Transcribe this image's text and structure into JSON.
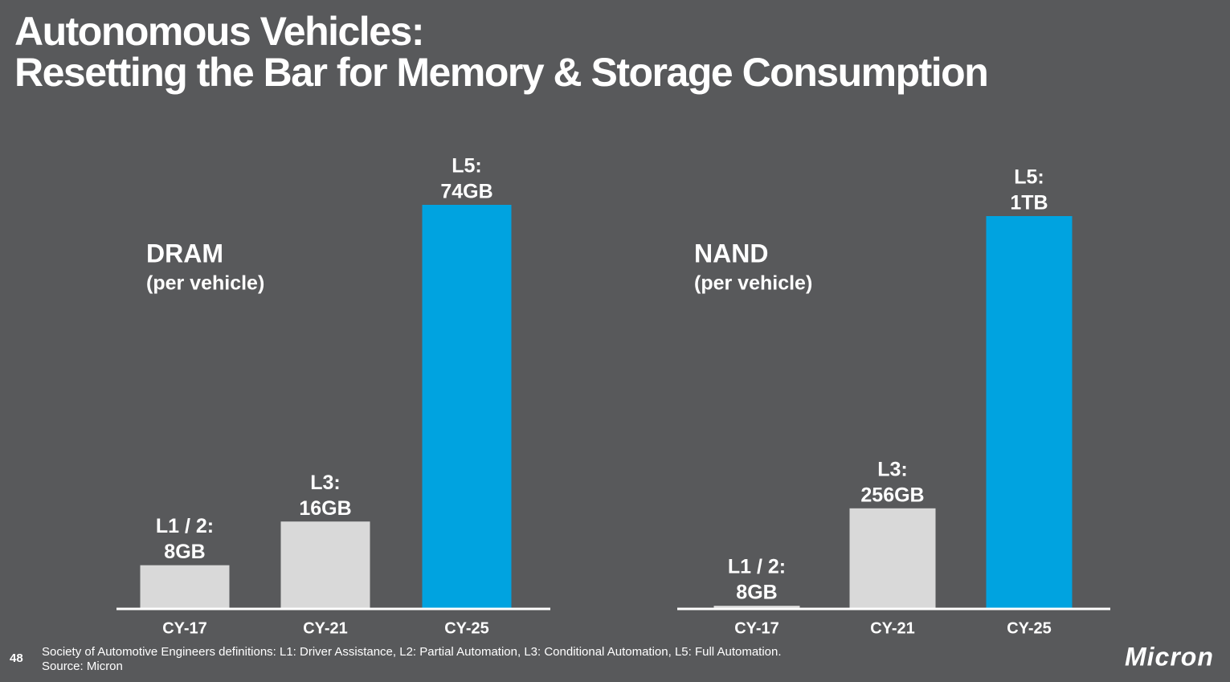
{
  "header": {
    "title": [
      "Autonomous Vehicles:",
      "Resetting the Bar for Memory & Storage Consumption"
    ]
  },
  "chart_data": [
    {
      "type": "bar",
      "title": "DRAM",
      "subtitle": "(per vehicle)",
      "categories": [
        "CY-17",
        "CY-21",
        "CY-25"
      ],
      "levels": [
        "L1 / 2:",
        "L3:",
        "L5:"
      ],
      "values": [
        8,
        16,
        74
      ],
      "value_labels": [
        "8GB",
        "16GB",
        "74GB"
      ],
      "colors": [
        "#d9d9d9",
        "#d9d9d9",
        "#00a3e0"
      ]
    },
    {
      "type": "bar",
      "title": "NAND",
      "subtitle": "(per vehicle)",
      "categories": [
        "CY-17",
        "CY-21",
        "CY-25"
      ],
      "levels": [
        "L1 / 2:",
        "L3:",
        "L5:"
      ],
      "values": [
        8,
        256,
        1000
      ],
      "value_labels": [
        "8GB",
        "256GB",
        "1TB"
      ],
      "colors": [
        "#d9d9d9",
        "#d9d9d9",
        "#00a3e0"
      ]
    }
  ],
  "footer": {
    "page_number": "48",
    "notes": [
      "Society of Automotive Engineers definitions: L1: Driver Assistance, L2: Partial Automation, L3: Conditional Automation, L5: Full Automation.",
      "Source: Micron"
    ],
    "logo": "Micron"
  }
}
